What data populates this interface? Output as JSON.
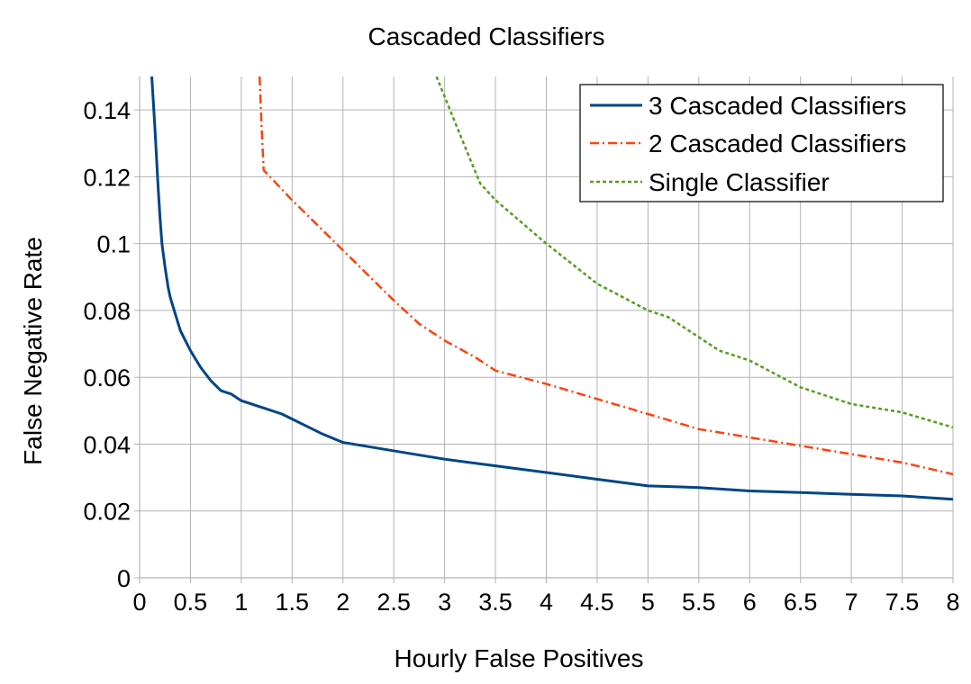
{
  "chart_data": {
    "type": "line",
    "title": "Cascaded Classifiers",
    "xlabel": "Hourly False Positives",
    "ylabel": "False Negative Rate",
    "xlim": [
      0,
      8
    ],
    "ylim": [
      0,
      0.15
    ],
    "xticks": [
      "0",
      "0.5",
      "1",
      "1.5",
      "2",
      "2.5",
      "3",
      "3.5",
      "4",
      "4.5",
      "5",
      "5.5",
      "6",
      "6.5",
      "7",
      "7.5",
      "8"
    ],
    "yticks": [
      "0",
      "0.02",
      "0.04",
      "0.06",
      "0.08",
      "0.1",
      "0.12",
      "0.14"
    ],
    "grid": true,
    "legend_position": "top-right",
    "series": [
      {
        "name": "3 Cascaded Classifiers",
        "color": "#004586",
        "dash": "solid",
        "x": [
          0.12,
          0.15,
          0.18,
          0.2,
          0.22,
          0.25,
          0.28,
          0.3,
          0.35,
          0.4,
          0.45,
          0.5,
          0.6,
          0.7,
          0.8,
          0.9,
          1.0,
          1.2,
          1.4,
          1.6,
          1.8,
          2.0,
          2.3,
          2.6,
          3.0,
          3.5,
          4.0,
          4.5,
          5.0,
          5.5,
          6.0,
          6.5,
          7.0,
          7.5,
          8.0
        ],
        "y": [
          0.15,
          0.135,
          0.118,
          0.108,
          0.1,
          0.093,
          0.087,
          0.084,
          0.079,
          0.074,
          0.071,
          0.068,
          0.063,
          0.059,
          0.056,
          0.055,
          0.053,
          0.051,
          0.049,
          0.046,
          0.043,
          0.0405,
          0.039,
          0.0375,
          0.0355,
          0.0335,
          0.0315,
          0.0295,
          0.0275,
          0.027,
          0.026,
          0.0255,
          0.025,
          0.0245,
          0.0235
        ]
      },
      {
        "name": "2 Cascaded Classifiers",
        "color": "#ff420e",
        "dash": "dashdot",
        "x": [
          1.18,
          1.2,
          1.22,
          1.5,
          2.0,
          2.5,
          2.75,
          3.0,
          3.3,
          3.5,
          4.0,
          4.5,
          5.0,
          5.5,
          6.0,
          6.5,
          7.0,
          7.5,
          8.0
        ],
        "y": [
          0.15,
          0.135,
          0.122,
          0.113,
          0.098,
          0.083,
          0.076,
          0.071,
          0.066,
          0.062,
          0.058,
          0.0535,
          0.049,
          0.0445,
          0.042,
          0.0395,
          0.037,
          0.0345,
          0.031
        ]
      },
      {
        "name": "Single Classifier",
        "color": "#579d1c",
        "dash": "dashed",
        "x": [
          2.92,
          3.0,
          3.2,
          3.35,
          3.5,
          4.0,
          4.5,
          5.0,
          5.2,
          5.5,
          5.7,
          6.0,
          6.5,
          7.0,
          7.5,
          8.0
        ],
        "y": [
          0.15,
          0.144,
          0.129,
          0.118,
          0.113,
          0.1,
          0.088,
          0.08,
          0.078,
          0.072,
          0.068,
          0.065,
          0.057,
          0.052,
          0.0495,
          0.045
        ]
      }
    ]
  }
}
